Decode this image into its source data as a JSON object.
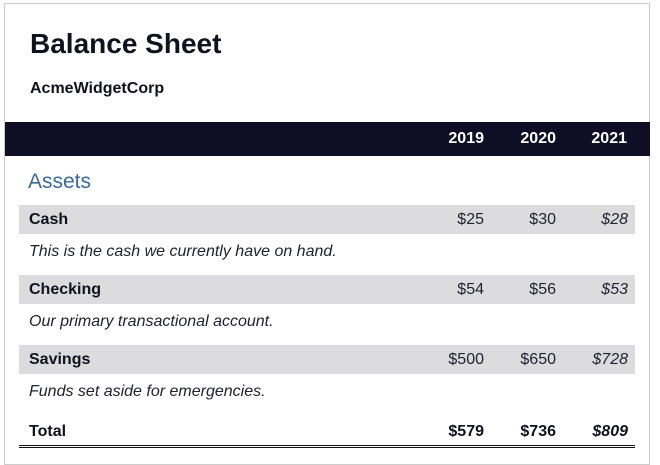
{
  "document": {
    "title": "Balance Sheet",
    "company": "AcmeWidgetCorp"
  },
  "columns": [
    "2019",
    "2020",
    "2021"
  ],
  "section": {
    "title": "Assets"
  },
  "rows": [
    {
      "label": "Cash",
      "values": [
        "$25",
        "$30",
        "$28"
      ],
      "description": "This is the cash we currently have on hand."
    },
    {
      "label": "Checking",
      "values": [
        "$54",
        "$56",
        "$53"
      ],
      "description": "Our primary transactional account."
    },
    {
      "label": "Savings",
      "values": [
        "$500",
        "$650",
        "$728"
      ],
      "description": "Funds set aside for emergencies."
    }
  ],
  "total": {
    "label": "Total",
    "values": [
      "$579",
      "$736",
      "$809"
    ]
  },
  "colors": {
    "header_band": "#0e0e26",
    "row_band": "#dcdcdf",
    "section_title": "#3a6a99",
    "text": "#11111f"
  }
}
